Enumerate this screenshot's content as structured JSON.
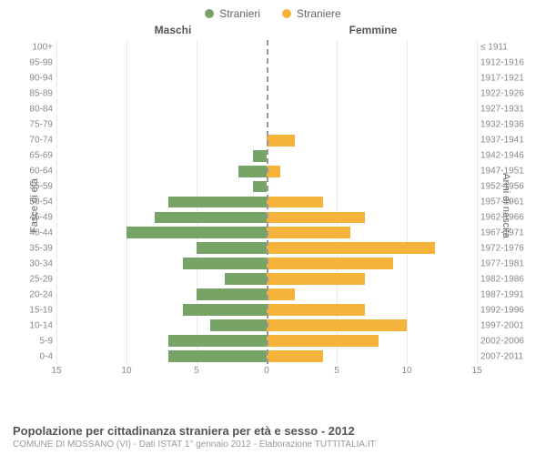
{
  "chart": {
    "type": "population-pyramid",
    "legend": {
      "male": "Stranieri",
      "female": "Straniere"
    },
    "columns": {
      "left": "Maschi",
      "right": "Femmine"
    },
    "axis_labels": {
      "left": "Fasce di età",
      "right": "Anni di nascita"
    },
    "colors": {
      "male": "#77a466",
      "female": "#f5b33c",
      "background": "#ffffff",
      "grid": "#eaeaea",
      "center": "#999999",
      "text": "#666666"
    },
    "x_axis": {
      "max": 15,
      "ticks": [
        15,
        10,
        5,
        0,
        5,
        10,
        15
      ]
    },
    "fontsize": {
      "legend": 12,
      "label": 10,
      "title": 13
    },
    "rows": [
      {
        "age": "100+",
        "year": "≤ 1911",
        "male": 0,
        "female": 0
      },
      {
        "age": "95-99",
        "year": "1912-1916",
        "male": 0,
        "female": 0
      },
      {
        "age": "90-94",
        "year": "1917-1921",
        "male": 0,
        "female": 0
      },
      {
        "age": "85-89",
        "year": "1922-1926",
        "male": 0,
        "female": 0
      },
      {
        "age": "80-84",
        "year": "1927-1931",
        "male": 0,
        "female": 0
      },
      {
        "age": "75-79",
        "year": "1932-1936",
        "male": 0,
        "female": 0
      },
      {
        "age": "70-74",
        "year": "1937-1941",
        "male": 0,
        "female": 2
      },
      {
        "age": "65-69",
        "year": "1942-1946",
        "male": 1,
        "female": 0
      },
      {
        "age": "60-64",
        "year": "1947-1951",
        "male": 2,
        "female": 1
      },
      {
        "age": "55-59",
        "year": "1952-1956",
        "male": 1,
        "female": 0
      },
      {
        "age": "50-54",
        "year": "1957-1961",
        "male": 7,
        "female": 4
      },
      {
        "age": "45-49",
        "year": "1962-1966",
        "male": 8,
        "female": 7
      },
      {
        "age": "40-44",
        "year": "1967-1971",
        "male": 10,
        "female": 6
      },
      {
        "age": "35-39",
        "year": "1972-1976",
        "male": 5,
        "female": 12
      },
      {
        "age": "30-34",
        "year": "1977-1981",
        "male": 6,
        "female": 9
      },
      {
        "age": "25-29",
        "year": "1982-1986",
        "male": 3,
        "female": 7
      },
      {
        "age": "20-24",
        "year": "1987-1991",
        "male": 5,
        "female": 2
      },
      {
        "age": "15-19",
        "year": "1992-1996",
        "male": 6,
        "female": 7
      },
      {
        "age": "10-14",
        "year": "1997-2001",
        "male": 4,
        "female": 10
      },
      {
        "age": "5-9",
        "year": "2002-2006",
        "male": 7,
        "female": 8
      },
      {
        "age": "0-4",
        "year": "2007-2011",
        "male": 7,
        "female": 4
      }
    ]
  },
  "footer": {
    "title": "Popolazione per cittadinanza straniera per età e sesso - 2012",
    "subtitle": "COMUNE DI MOSSANO (VI) - Dati ISTAT 1° gennaio 2012 - Elaborazione TUTTITALIA.IT"
  }
}
